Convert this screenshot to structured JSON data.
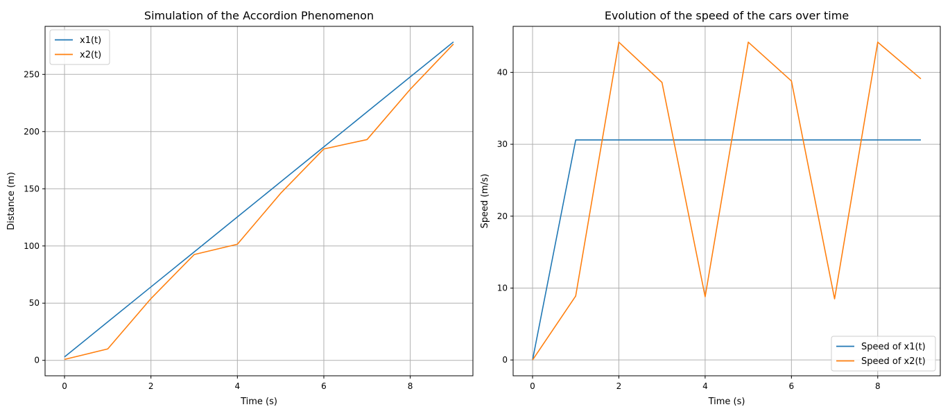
{
  "chart_data": [
    {
      "type": "line",
      "title": "Simulation of the Accordion Phenomenon",
      "xlabel": "Time (s)",
      "ylabel": "Distance (m)",
      "xlim": [
        -0.45,
        9.45
      ],
      "ylim": [
        -13.5,
        292
      ],
      "xticks": [
        0,
        2,
        4,
        6,
        8
      ],
      "yticks": [
        0,
        50,
        100,
        150,
        200,
        250
      ],
      "grid": true,
      "legend_position": "top-left",
      "x": [
        0,
        1,
        2,
        3,
        4,
        5,
        6,
        7,
        8,
        9
      ],
      "series": [
        {
          "name": "x1(t)",
          "color": "#1f77b4",
          "values": [
            3,
            33.6,
            64.2,
            94.8,
            125.4,
            156,
            186.6,
            217.2,
            247.8,
            278.4
          ]
        },
        {
          "name": "x2(t)",
          "color": "#ff7f0e",
          "values": [
            0.8,
            10,
            54,
            92.5,
            101.5,
            146,
            184.8,
            193,
            237,
            276.5
          ]
        }
      ]
    },
    {
      "type": "line",
      "title": "Evolution of the speed of the cars over time",
      "xlabel": "Time (s)",
      "ylabel": "Speed (m/s)",
      "xlim": [
        -0.45,
        9.45
      ],
      "ylim": [
        -2.2,
        46.4
      ],
      "xticks": [
        0,
        2,
        4,
        6,
        8
      ],
      "yticks": [
        0,
        10,
        20,
        30,
        40
      ],
      "grid": true,
      "legend_position": "bottom-right",
      "x": [
        0,
        1,
        2,
        3,
        4,
        5,
        6,
        7,
        8,
        9
      ],
      "series": [
        {
          "name": "Speed of x1(t)",
          "color": "#1f77b4",
          "values": [
            0,
            30.6,
            30.6,
            30.6,
            30.6,
            30.6,
            30.6,
            30.6,
            30.6,
            30.6
          ]
        },
        {
          "name": "Speed of x2(t)",
          "color": "#ff7f0e",
          "values": [
            0,
            8.9,
            44.2,
            38.6,
            8.8,
            44.2,
            38.8,
            8.5,
            44.2,
            39.1
          ]
        }
      ]
    }
  ]
}
